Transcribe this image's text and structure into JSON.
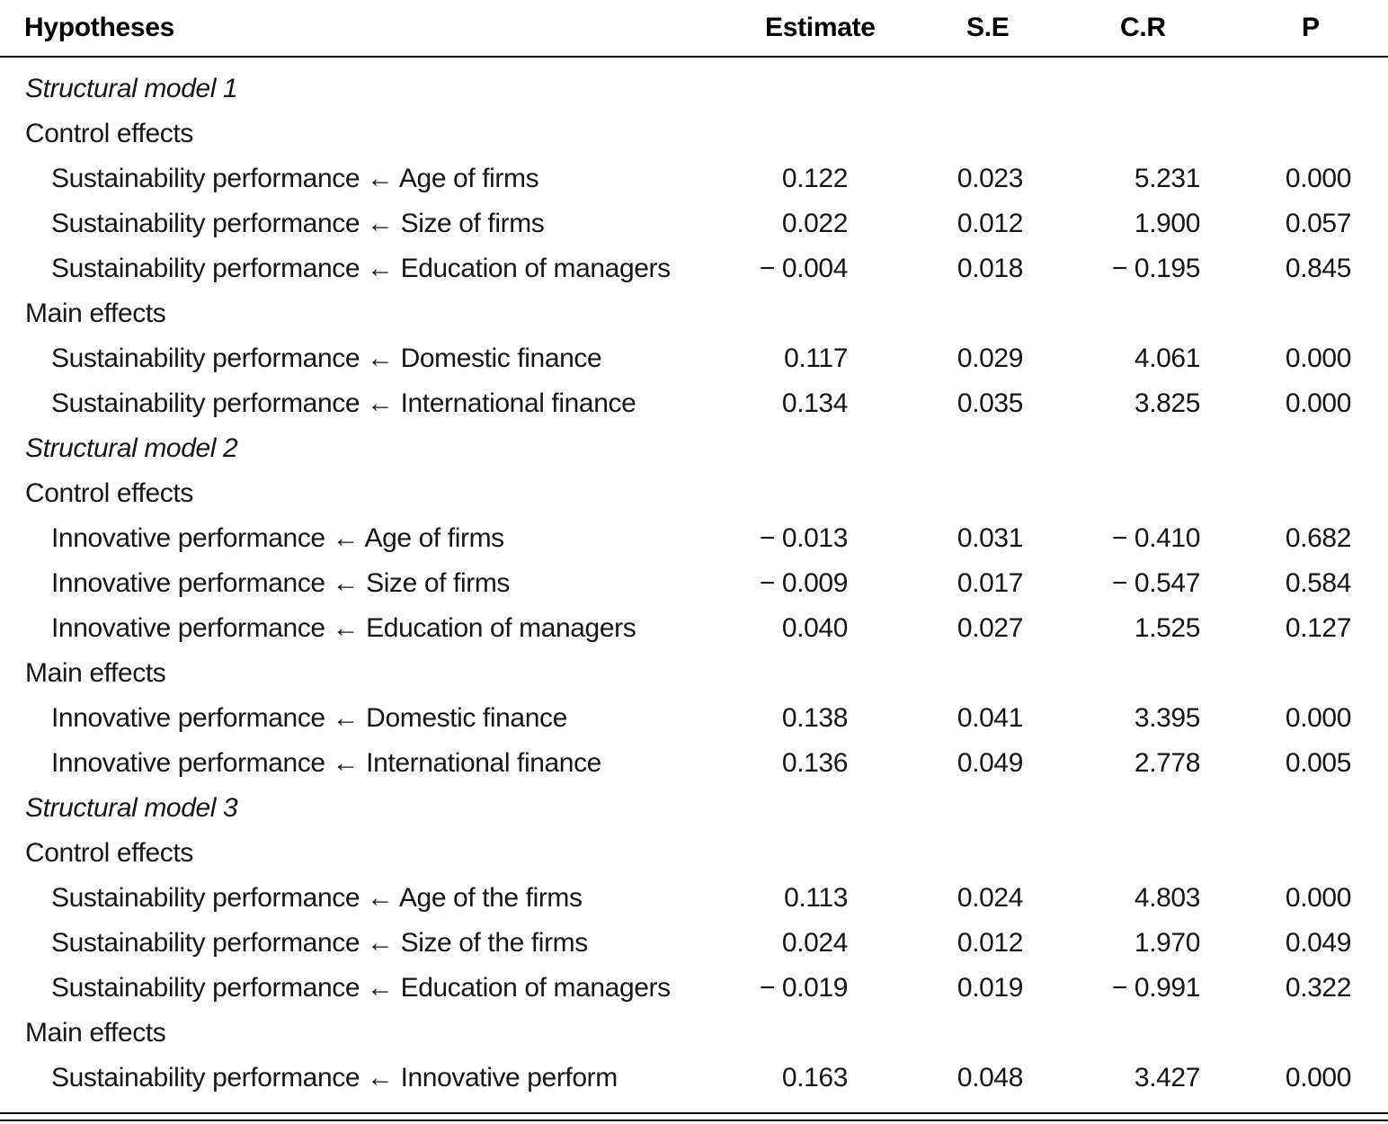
{
  "table": {
    "columns": [
      "Hypotheses",
      "Estimate",
      "S.E",
      "C.R",
      "P"
    ],
    "rows": [
      {
        "type": "model",
        "label": "Structural model 1"
      },
      {
        "type": "group",
        "label": "Control effects"
      },
      {
        "type": "data",
        "hypothesis": "Sustainability performance ← Age of firms",
        "estimate": "0.122",
        "se": "0.023",
        "cr": "5.231",
        "p": "0.000"
      },
      {
        "type": "data",
        "hypothesis": "Sustainability performance ← Size of firms",
        "estimate": "0.022",
        "se": "0.012",
        "cr": "1.900",
        "p": "0.057"
      },
      {
        "type": "data",
        "hypothesis": "Sustainability performance ← Education of managers",
        "estimate": "− 0.004",
        "se": "0.018",
        "cr": "− 0.195",
        "p": "0.845"
      },
      {
        "type": "group",
        "label": "Main effects"
      },
      {
        "type": "data",
        "hypothesis": "Sustainability performance ← Domestic finance",
        "estimate": "0.117",
        "se": "0.029",
        "cr": "4.061",
        "p": "0.000"
      },
      {
        "type": "data",
        "hypothesis": "Sustainability performance ← International finance",
        "estimate": "0.134",
        "se": "0.035",
        "cr": "3.825",
        "p": "0.000"
      },
      {
        "type": "model",
        "label": "Structural model 2"
      },
      {
        "type": "group",
        "label": "Control effects"
      },
      {
        "type": "data",
        "hypothesis": "Innovative performance ← Age of firms",
        "estimate": "− 0.013",
        "se": "0.031",
        "cr": "− 0.410",
        "p": "0.682"
      },
      {
        "type": "data",
        "hypothesis": "Innovative performance ← Size of firms",
        "estimate": "− 0.009",
        "se": "0.017",
        "cr": "− 0.547",
        "p": "0.584"
      },
      {
        "type": "data",
        "hypothesis": "Innovative performance ← Education of managers",
        "estimate": "0.040",
        "se": "0.027",
        "cr": "1.525",
        "p": "0.127"
      },
      {
        "type": "group",
        "label": "Main effects"
      },
      {
        "type": "data",
        "hypothesis": "Innovative performance ← Domestic finance",
        "estimate": "0.138",
        "se": "0.041",
        "cr": "3.395",
        "p": "0.000"
      },
      {
        "type": "data",
        "hypothesis": "Innovative performance ← International finance",
        "estimate": "0.136",
        "se": "0.049",
        "cr": "2.778",
        "p": "0.005"
      },
      {
        "type": "model",
        "label": "Structural model 3"
      },
      {
        "type": "group",
        "label": "Control effects"
      },
      {
        "type": "data",
        "hypothesis": "Sustainability performance ← Age of the firms",
        "estimate": "0.113",
        "se": "0.024",
        "cr": "4.803",
        "p": "0.000"
      },
      {
        "type": "data",
        "hypothesis": "Sustainability performance ← Size of the firms",
        "estimate": "0.024",
        "se": "0.012",
        "cr": "1.970",
        "p": "0.049"
      },
      {
        "type": "data",
        "hypothesis": "Sustainability performance ← Education of managers",
        "estimate": "− 0.019",
        "se": "0.019",
        "cr": "− 0.991",
        "p": "0.322"
      },
      {
        "type": "group",
        "label": "Main effects"
      },
      {
        "type": "data",
        "hypothesis": "Sustainability performance ← Innovative perform",
        "estimate": "0.163",
        "se": "0.048",
        "cr": "3.427",
        "p": "0.000"
      }
    ]
  },
  "chart_data": {
    "type": "table",
    "title": "Structural model hypotheses test results",
    "columns": [
      "Hypotheses",
      "Estimate",
      "S.E",
      "C.R",
      "P"
    ],
    "sections": [
      {
        "model": "Structural model 1",
        "control_effects": [
          {
            "path": "Sustainability performance ← Age of firms",
            "estimate": 0.122,
            "se": 0.023,
            "cr": 5.231,
            "p": 0.0
          },
          {
            "path": "Sustainability performance ← Size of firms",
            "estimate": 0.022,
            "se": 0.012,
            "cr": 1.9,
            "p": 0.057
          },
          {
            "path": "Sustainability performance ← Education of managers",
            "estimate": -0.004,
            "se": 0.018,
            "cr": -0.195,
            "p": 0.845
          }
        ],
        "main_effects": [
          {
            "path": "Sustainability performance ← Domestic finance",
            "estimate": 0.117,
            "se": 0.029,
            "cr": 4.061,
            "p": 0.0
          },
          {
            "path": "Sustainability performance ← International finance",
            "estimate": 0.134,
            "se": 0.035,
            "cr": 3.825,
            "p": 0.0
          }
        ]
      },
      {
        "model": "Structural model 2",
        "control_effects": [
          {
            "path": "Innovative performance ← Age of firms",
            "estimate": -0.013,
            "se": 0.031,
            "cr": -0.41,
            "p": 0.682
          },
          {
            "path": "Innovative performance ← Size of firms",
            "estimate": -0.009,
            "se": 0.017,
            "cr": -0.547,
            "p": 0.584
          },
          {
            "path": "Innovative performance ← Education of managers",
            "estimate": 0.04,
            "se": 0.027,
            "cr": 1.525,
            "p": 0.127
          }
        ],
        "main_effects": [
          {
            "path": "Innovative performance ← Domestic finance",
            "estimate": 0.138,
            "se": 0.041,
            "cr": 3.395,
            "p": 0.0
          },
          {
            "path": "Innovative performance ← International finance",
            "estimate": 0.136,
            "se": 0.049,
            "cr": 2.778,
            "p": 0.005
          }
        ]
      },
      {
        "model": "Structural model 3",
        "control_effects": [
          {
            "path": "Sustainability performance ← Age of the firms",
            "estimate": 0.113,
            "se": 0.024,
            "cr": 4.803,
            "p": 0.0
          },
          {
            "path": "Sustainability performance ← Size of the firms",
            "estimate": 0.024,
            "se": 0.012,
            "cr": 1.97,
            "p": 0.049
          },
          {
            "path": "Sustainability performance ← Education of managers",
            "estimate": -0.019,
            "se": 0.019,
            "cr": -0.991,
            "p": 0.322
          }
        ],
        "main_effects": [
          {
            "path": "Sustainability performance ← Innovative perform",
            "estimate": 0.163,
            "se": 0.048,
            "cr": 3.427,
            "p": 0.0
          }
        ]
      }
    ]
  }
}
